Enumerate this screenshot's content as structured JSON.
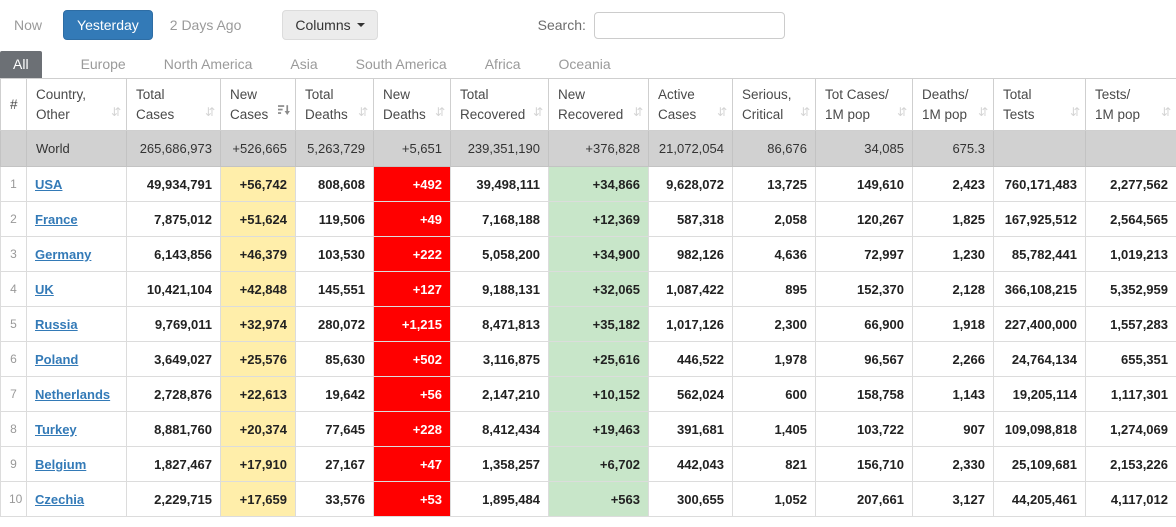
{
  "toolbar": {
    "time_filters": [
      {
        "label": "Now",
        "active": false
      },
      {
        "label": "Yesterday",
        "active": true
      },
      {
        "label": "2 Days Ago",
        "active": false
      }
    ],
    "columns_button": "Columns",
    "search_label": "Search:",
    "search_value": "",
    "search_placeholder": ""
  },
  "tabs": [
    {
      "label": "All",
      "active": true
    },
    {
      "label": "Europe",
      "active": false
    },
    {
      "label": "North America",
      "active": false
    },
    {
      "label": "Asia",
      "active": false
    },
    {
      "label": "South America",
      "active": false
    },
    {
      "label": "Africa",
      "active": false
    },
    {
      "label": "Oceania",
      "active": false
    }
  ],
  "table": {
    "headers": [
      {
        "lines": [
          "#"
        ],
        "sort": "none"
      },
      {
        "lines": [
          "Country,",
          "Other"
        ],
        "sort": "both"
      },
      {
        "lines": [
          "Total",
          "Cases"
        ],
        "sort": "both"
      },
      {
        "lines": [
          "New",
          "Cases"
        ],
        "sort": "desc"
      },
      {
        "lines": [
          "Total",
          "Deaths"
        ],
        "sort": "both"
      },
      {
        "lines": [
          "New",
          "Deaths"
        ],
        "sort": "both"
      },
      {
        "lines": [
          "Total",
          "Recovered"
        ],
        "sort": "both"
      },
      {
        "lines": [
          "New",
          "Recovered"
        ],
        "sort": "both"
      },
      {
        "lines": [
          "Active",
          "Cases"
        ],
        "sort": "both"
      },
      {
        "lines": [
          "Serious,",
          "Critical"
        ],
        "sort": "both"
      },
      {
        "lines": [
          "Tot Cases/",
          "1M pop"
        ],
        "sort": "both"
      },
      {
        "lines": [
          "Deaths/",
          "1M pop"
        ],
        "sort": "both"
      },
      {
        "lines": [
          "Total",
          "Tests"
        ],
        "sort": "both"
      },
      {
        "lines": [
          "Tests/",
          "1M pop"
        ],
        "sort": "both"
      }
    ],
    "world_row": {
      "rank": "",
      "country": "World",
      "cells": [
        "265,686,973",
        "+526,665",
        "5,263,729",
        "+5,651",
        "239,351,190",
        "+376,828",
        "21,072,054",
        "86,676",
        "34,085",
        "675.3",
        "",
        ""
      ]
    },
    "rows": [
      {
        "rank": "1",
        "country": "USA",
        "cells": [
          "49,934,791",
          "+56,742",
          "808,608",
          "+492",
          "39,498,111",
          "+34,866",
          "9,628,072",
          "13,725",
          "149,610",
          "2,423",
          "760,171,483",
          "2,277,562"
        ]
      },
      {
        "rank": "2",
        "country": "France",
        "cells": [
          "7,875,012",
          "+51,624",
          "119,506",
          "+49",
          "7,168,188",
          "+12,369",
          "587,318",
          "2,058",
          "120,267",
          "1,825",
          "167,925,512",
          "2,564,565"
        ]
      },
      {
        "rank": "3",
        "country": "Germany",
        "cells": [
          "6,143,856",
          "+46,379",
          "103,530",
          "+222",
          "5,058,200",
          "+34,900",
          "982,126",
          "4,636",
          "72,997",
          "1,230",
          "85,782,441",
          "1,019,213"
        ]
      },
      {
        "rank": "4",
        "country": "UK",
        "cells": [
          "10,421,104",
          "+42,848",
          "145,551",
          "+127",
          "9,188,131",
          "+32,065",
          "1,087,422",
          "895",
          "152,370",
          "2,128",
          "366,108,215",
          "5,352,959"
        ]
      },
      {
        "rank": "5",
        "country": "Russia",
        "cells": [
          "9,769,011",
          "+32,974",
          "280,072",
          "+1,215",
          "8,471,813",
          "+35,182",
          "1,017,126",
          "2,300",
          "66,900",
          "1,918",
          "227,400,000",
          "1,557,283"
        ]
      },
      {
        "rank": "6",
        "country": "Poland",
        "cells": [
          "3,649,027",
          "+25,576",
          "85,630",
          "+502",
          "3,116,875",
          "+25,616",
          "446,522",
          "1,978",
          "96,567",
          "2,266",
          "24,764,134",
          "655,351"
        ]
      },
      {
        "rank": "7",
        "country": "Netherlands",
        "cells": [
          "2,728,876",
          "+22,613",
          "19,642",
          "+56",
          "2,147,210",
          "+10,152",
          "562,024",
          "600",
          "158,758",
          "1,143",
          "19,205,114",
          "1,117,301"
        ]
      },
      {
        "rank": "8",
        "country": "Turkey",
        "cells": [
          "8,881,760",
          "+20,374",
          "77,645",
          "+228",
          "8,412,434",
          "+19,463",
          "391,681",
          "1,405",
          "103,722",
          "907",
          "109,098,818",
          "1,274,069"
        ]
      },
      {
        "rank": "9",
        "country": "Belgium",
        "cells": [
          "1,827,467",
          "+17,910",
          "27,167",
          "+47",
          "1,358,257",
          "+6,702",
          "442,043",
          "821",
          "156,710",
          "2,330",
          "25,109,681",
          "2,153,226"
        ]
      },
      {
        "rank": "10",
        "country": "Czechia",
        "cells": [
          "2,229,715",
          "+17,659",
          "33,576",
          "+53",
          "1,895,484",
          "+563",
          "300,655",
          "1,052",
          "207,661",
          "3,127",
          "44,205,461",
          "4,117,012"
        ]
      }
    ]
  },
  "colors": {
    "accent_blue": "#337ab7",
    "new_cases_bg": "#FFEEAA",
    "new_deaths_bg": "#FF0000",
    "new_recovered_bg": "#c8e6c9",
    "world_row_bg": "#d1d1d1",
    "active_tab_bg": "#6c7075"
  }
}
